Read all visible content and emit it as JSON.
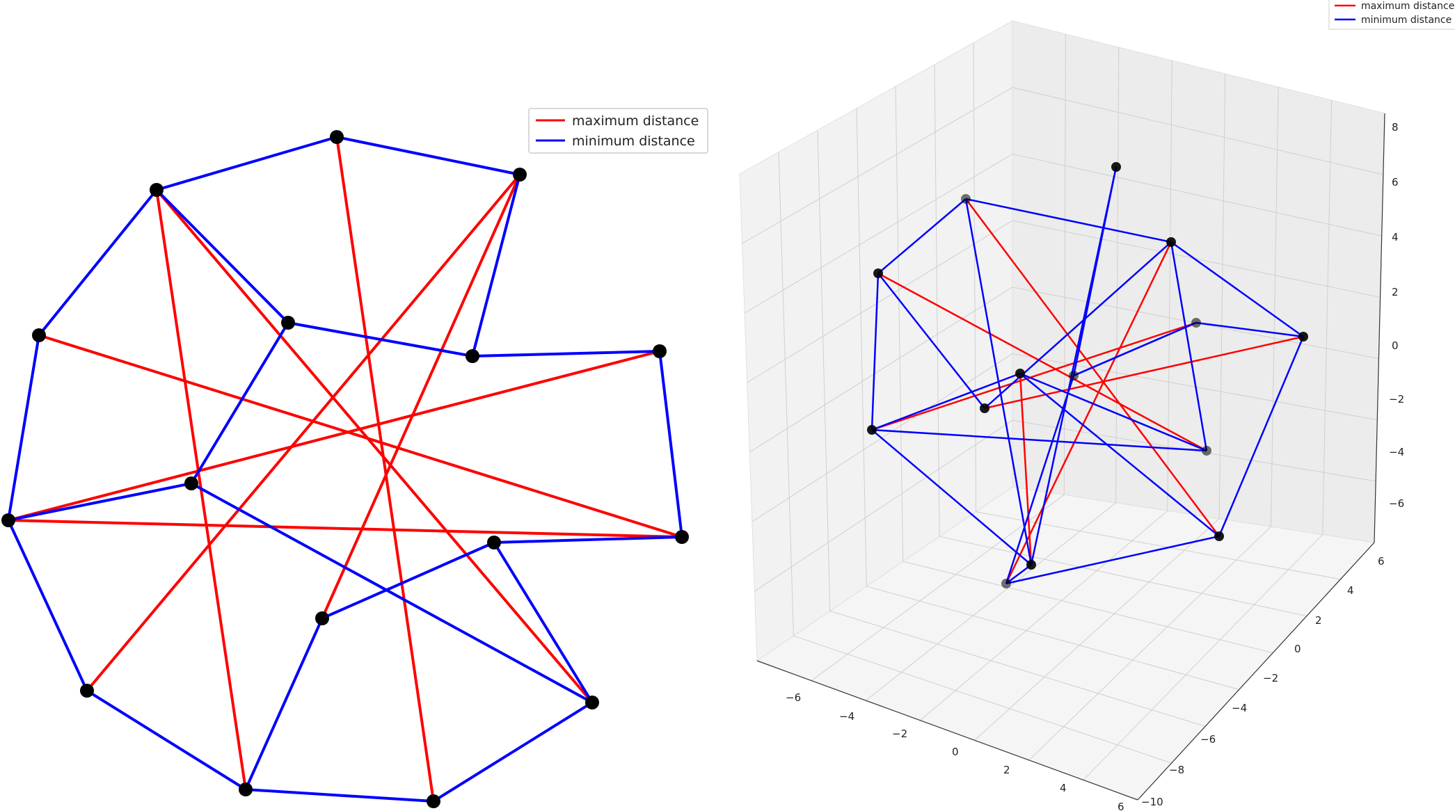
{
  "left_panel": {
    "legend": [
      {
        "label": "maximum distance",
        "color": "#ff0000"
      },
      {
        "label": "minimum distance",
        "color": "#0000ff"
      }
    ]
  },
  "right_panel": {
    "legend": [
      {
        "label": "maximum distance",
        "color": "#ff0000"
      },
      {
        "label": "minimum distance",
        "color": "#0000ff"
      }
    ],
    "z_ticks": [
      "8",
      "6",
      "4",
      "2",
      "0",
      "−2",
      "−4",
      "−6"
    ],
    "x_ticks": [
      "−6",
      "−4",
      "−2",
      "0",
      "2",
      "4",
      "6"
    ],
    "y_ticks": [
      "6",
      "4",
      "2",
      "0",
      "−2",
      "−4",
      "−6",
      "−8",
      "−10"
    ]
  },
  "colors": {
    "max_edge": "#ff0000",
    "min_edge": "#0000ff",
    "node": "#000000",
    "pane": "#f2f2f2",
    "grid": "#cfcfcf"
  }
}
